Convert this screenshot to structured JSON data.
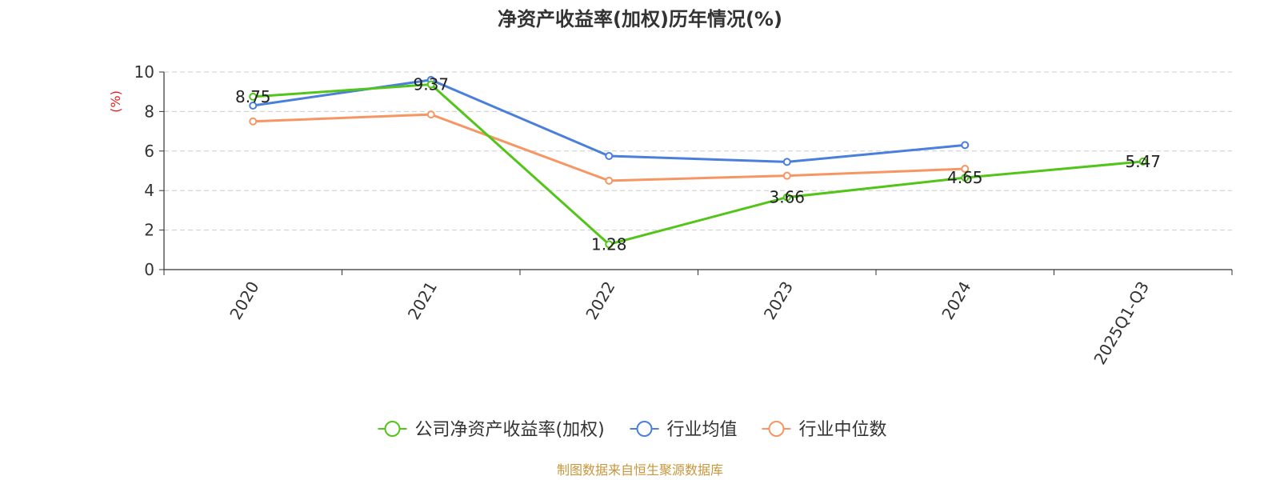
{
  "chart_data": {
    "type": "line",
    "title": "净资产收益率(加权)历年情况(%)",
    "ylabel": "(%)",
    "categories": [
      "2020",
      "2021",
      "2022",
      "2023",
      "2024",
      "2025Q1-Q3"
    ],
    "ylim": [
      0,
      10
    ],
    "yticks": [
      0,
      2,
      4,
      6,
      8,
      10
    ],
    "grid": true,
    "legend_position": "bottom",
    "series": [
      {
        "name": "公司净资产收益率(加权)",
        "color": "#52c41a",
        "values": [
          8.75,
          9.37,
          1.28,
          3.66,
          4.65,
          5.47
        ],
        "labels": [
          "8.75",
          "9.37",
          "1.28",
          "3.66",
          "4.65",
          "5.47"
        ]
      },
      {
        "name": "行业均值",
        "color": "#4a7fdb",
        "values": [
          8.3,
          9.6,
          5.75,
          5.45,
          6.3,
          null
        ]
      },
      {
        "name": "行业中位数",
        "color": "#f59664",
        "values": [
          7.5,
          7.85,
          4.5,
          4.75,
          5.1,
          null
        ]
      }
    ],
    "source": "制图数据来自恒生聚源数据库",
    "ylabel_color": "#e02020",
    "source_color": "#c8963c"
  }
}
